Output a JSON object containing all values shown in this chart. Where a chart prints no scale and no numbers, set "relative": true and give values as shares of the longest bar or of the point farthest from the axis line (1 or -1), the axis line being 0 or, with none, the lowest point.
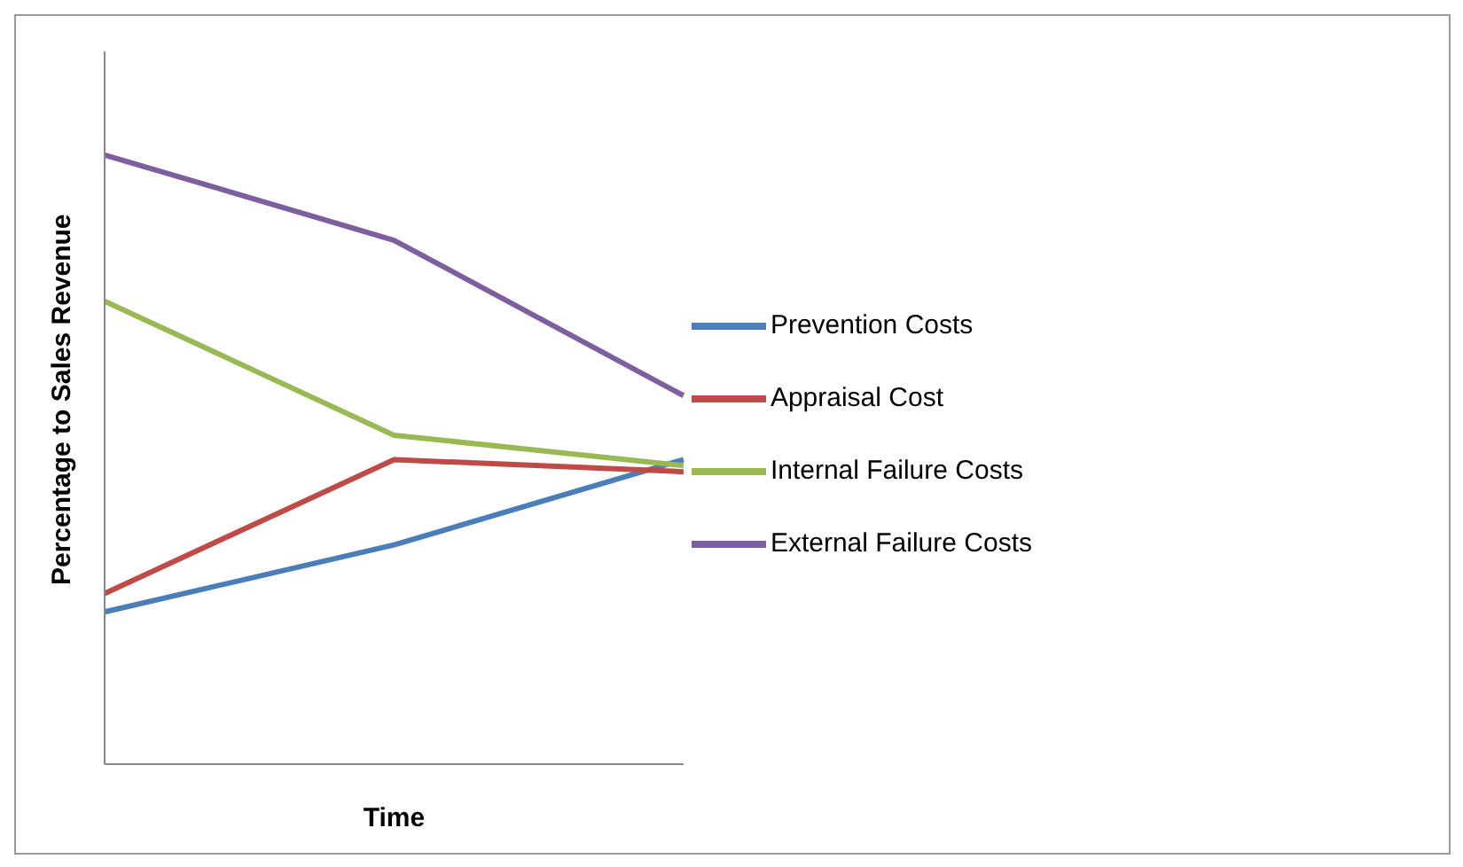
{
  "chart_data": {
    "type": "line",
    "relative": true,
    "xlabel": "Time",
    "ylabel": "Percentage to Sales Revenue",
    "categories": [
      null,
      null,
      null
    ],
    "legend": "right",
    "grid": false,
    "marker": "none",
    "line_style": "solid",
    "series": [
      {
        "name": "Prevention Costs",
        "color": "#4a7ebb",
        "values": [
          0.25,
          0.36,
          0.5
        ]
      },
      {
        "name": "Appraisal Cost",
        "color": "#be4b48",
        "values": [
          0.28,
          0.5,
          0.48
        ]
      },
      {
        "name": "Internal Failure Costs",
        "color": "#98b954",
        "values": [
          0.76,
          0.54,
          0.49
        ]
      },
      {
        "name": "External Failure Costs",
        "color": "#7d5fa0",
        "values": [
          1,
          0.86,
          0.605
        ]
      }
    ]
  }
}
